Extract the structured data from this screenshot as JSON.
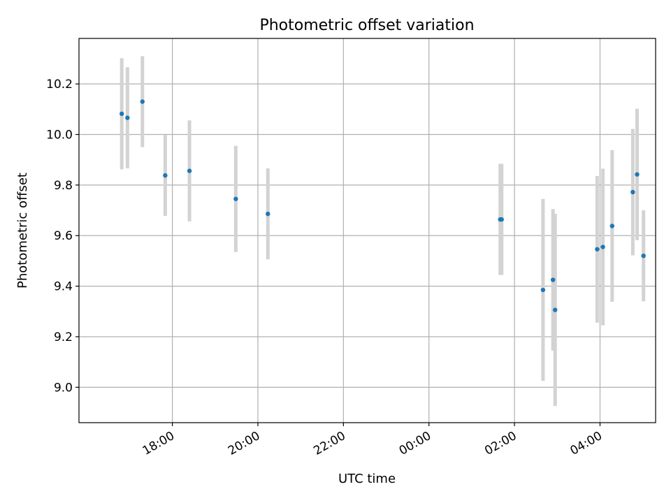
{
  "chart_data": {
    "type": "scatter",
    "title": "Photometric offset variation",
    "xlabel": "UTC time",
    "ylabel": "Photometric offset",
    "x_ticks": [
      "18:00",
      "20:00",
      "22:00",
      "00:00",
      "02:00",
      "04:00"
    ],
    "x_tick_minutes": [
      1080,
      1200,
      1320,
      1440,
      1560,
      1680
    ],
    "xlim_minutes": [
      949,
      1758
    ],
    "y_ticks": [
      "9.0",
      "9.2",
      "9.4",
      "9.6",
      "9.8",
      "10.0",
      "10.2"
    ],
    "ylim": [
      8.86,
      10.38
    ],
    "grid": true,
    "colors": {
      "marker": "#1f77b4",
      "errorbar": "#d3d3d3",
      "grid": "#b0b0b0"
    },
    "points": [
      {
        "t": "16:49",
        "minutes": 1009,
        "y": 10.082,
        "err": 0.22
      },
      {
        "t": "16:57",
        "minutes": 1017,
        "y": 10.066,
        "err": 0.2
      },
      {
        "t": "17:18",
        "minutes": 1038,
        "y": 10.13,
        "err": 0.18
      },
      {
        "t": "17:50",
        "minutes": 1070,
        "y": 9.838,
        "err": 0.16
      },
      {
        "t": "18:24",
        "minutes": 1104,
        "y": 9.856,
        "err": 0.2
      },
      {
        "t": "19:29",
        "minutes": 1169,
        "y": 9.745,
        "err": 0.21
      },
      {
        "t": "20:14",
        "minutes": 1214,
        "y": 9.686,
        "err": 0.18
      },
      {
        "t": "01:40",
        "minutes": 1540,
        "y": 9.664,
        "err": 0.22
      },
      {
        "t": "01:42",
        "minutes": 1542,
        "y": 9.664,
        "err": 0.22
      },
      {
        "t": "02:40",
        "minutes": 1600,
        "y": 9.385,
        "err": 0.36
      },
      {
        "t": "02:54",
        "minutes": 1614,
        "y": 9.425,
        "err": 0.28
      },
      {
        "t": "02:57",
        "minutes": 1617,
        "y": 9.306,
        "err": 0.38
      },
      {
        "t": "03:56",
        "minutes": 1676,
        "y": 9.546,
        "err": 0.29
      },
      {
        "t": "04:04",
        "minutes": 1684,
        "y": 9.555,
        "err": 0.31
      },
      {
        "t": "04:17",
        "minutes": 1697,
        "y": 9.638,
        "err": 0.3
      },
      {
        "t": "04:46",
        "minutes": 1726,
        "y": 9.772,
        "err": 0.25
      },
      {
        "t": "04:52",
        "minutes": 1732,
        "y": 9.842,
        "err": 0.26
      },
      {
        "t": "05:01",
        "minutes": 1741,
        "y": 9.52,
        "err": 0.18
      }
    ]
  }
}
